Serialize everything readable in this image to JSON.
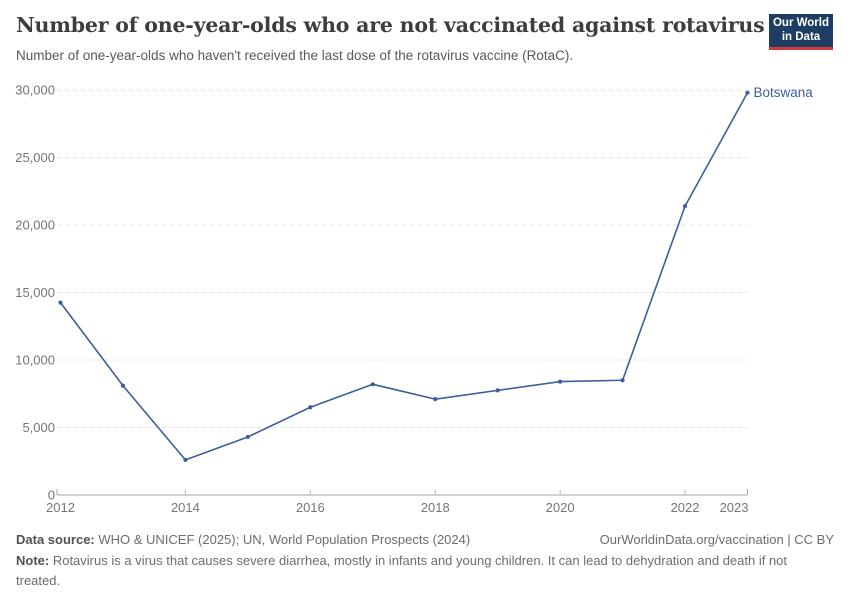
{
  "header": {
    "title": "Number of one-year-olds who are not vaccinated against rotavirus",
    "subtitle": "Number of one-year-olds who haven't received the last dose of the rotavirus vaccine (RotaC).",
    "logo": {
      "line1": "Our World",
      "line2": "in Data",
      "bg_color": "#1d3d63",
      "bar_color": "#cf3b34"
    }
  },
  "chart_data": {
    "type": "line",
    "x": [
      2012,
      2013,
      2014,
      2015,
      2016,
      2017,
      2018,
      2019,
      2020,
      2021,
      2022,
      2023
    ],
    "series": [
      {
        "name": "Botswana",
        "color": "#3d5e9c",
        "values": [
          14250,
          8100,
          2600,
          4300,
          6500,
          8200,
          7100,
          7750,
          8400,
          8500,
          21400,
          29800
        ]
      }
    ],
    "title": "Number of one-year-olds who are not vaccinated against rotavirus",
    "xlabel": "",
    "ylabel": "",
    "xlim": [
      2012,
      2023
    ],
    "ylim": [
      0,
      30000
    ],
    "y_ticks": [
      0,
      5000,
      10000,
      15000,
      20000,
      25000,
      30000
    ],
    "x_tick_labels": [
      2012,
      2014,
      2016,
      2018,
      2020,
      2022,
      2023
    ],
    "grid": "horizontal-dashed",
    "grid_color": "#e4e4e4",
    "axis_color": "#a6a6a6",
    "tick_label_color": "#757575",
    "legend_position": "end-of-line-label",
    "end_label": "Botswana"
  },
  "footer": {
    "source_label": "Data source:",
    "source_text": " WHO & UNICEF (2025); UN, World Population Prospects (2024)",
    "link_text": "OurWorldinData.org/vaccination | CC BY",
    "note_label": "Note:",
    "note_text": " Rotavirus is a virus that causes severe diarrhea, mostly in infants and young children. It can lead to dehydration and death if not treated."
  }
}
